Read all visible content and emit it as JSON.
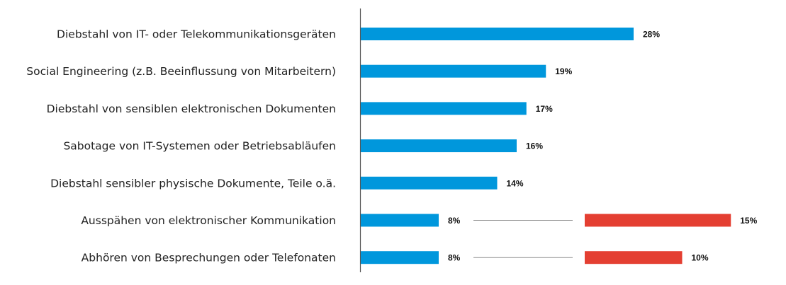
{
  "chart_data": {
    "type": "bar",
    "orientation": "horizontal",
    "categories": [
      "Diebstahl von IT- oder Telekommunikationsgeräten",
      "Social Engineering (z.B. Beeinflussung von Mitarbeitern)",
      "Diebstahl von sensiblen elektronischen Dokumenten",
      "Sabotage von IT-Systemen oder Betriebsabläufen",
      "Diebstahl sensibler physische Dokumente, Teile o.ä.",
      "Ausspähen von elektronischer Kommunikation",
      "Abhören von Besprechungen oder Telefonaten"
    ],
    "series": [
      {
        "values": [
          28,
          19,
          17,
          16,
          14,
          8,
          8
        ],
        "labels": [
          "28%",
          "19%",
          "17%",
          "16%",
          "14%",
          "8%",
          "8%"
        ],
        "color": "#0097dc"
      },
      {
        "values": [
          null,
          null,
          null,
          null,
          null,
          15,
          10
        ],
        "labels": [
          "",
          "",
          "",
          "",
          "",
          "15%",
          "10%"
        ],
        "color": "#e43f32"
      }
    ],
    "unit": "%",
    "xlim": [
      0,
      30
    ],
    "grid": false,
    "legend": "none"
  }
}
